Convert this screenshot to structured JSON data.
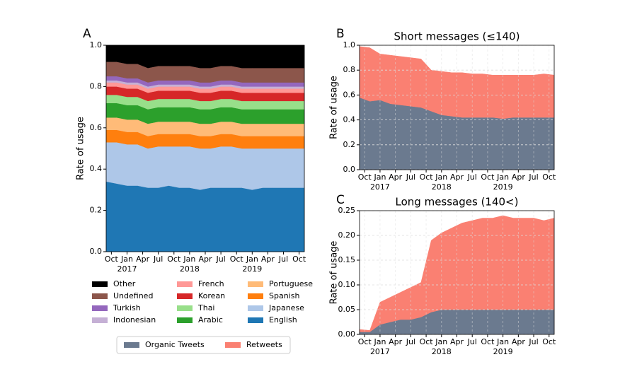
{
  "chart_data": [
    {
      "type": "stacked-area",
      "panel_label": "A",
      "ylabel": "Rate of usage",
      "grid": false,
      "x": [
        "2016-09",
        "2016-11",
        "2017-01",
        "2017-03",
        "2017-05",
        "2017-07",
        "2017-09",
        "2017-11",
        "2018-01",
        "2018-03",
        "2018-05",
        "2018-07",
        "2018-09",
        "2018-11",
        "2019-01",
        "2019-03",
        "2019-05",
        "2019-07",
        "2019-09",
        "2019-11"
      ],
      "xlim": [
        "2016-09",
        "2019-11"
      ],
      "xticks": [
        {
          "value": "2016-10",
          "label": "Oct"
        },
        {
          "value": "2017-01",
          "label": "Jan"
        },
        {
          "value": "2017-04",
          "label": "Apr"
        },
        {
          "value": "2017-07",
          "label": "Jul"
        },
        {
          "value": "2017-10",
          "label": "Oct"
        },
        {
          "value": "2018-01",
          "label": "Jan"
        },
        {
          "value": "2018-04",
          "label": "Apr"
        },
        {
          "value": "2018-07",
          "label": "Jul"
        },
        {
          "value": "2018-10",
          "label": "Oct"
        },
        {
          "value": "2019-01",
          "label": "Jan"
        },
        {
          "value": "2019-04",
          "label": "Apr"
        },
        {
          "value": "2019-07",
          "label": "Jul"
        },
        {
          "value": "2019-10",
          "label": "Oct"
        }
      ],
      "xtick_years": [
        {
          "value": "2017-01",
          "label": "2017"
        },
        {
          "value": "2018-01",
          "label": "2018"
        },
        {
          "value": "2019-01",
          "label": "2019"
        }
      ],
      "ylim": [
        0,
        1
      ],
      "yticks": [
        {
          "value": 0,
          "label": "0.0"
        },
        {
          "value": 0.2,
          "label": "0.2"
        },
        {
          "value": 0.4,
          "label": "0.4"
        },
        {
          "value": 0.6,
          "label": "0.6"
        },
        {
          "value": 0.8,
          "label": "0.8"
        },
        {
          "value": 1,
          "label": "1.0"
        }
      ],
      "series": [
        {
          "name": "English",
          "color": "#1f77b4",
          "values": [
            0.34,
            0.33,
            0.32,
            0.32,
            0.31,
            0.31,
            0.32,
            0.31,
            0.31,
            0.3,
            0.31,
            0.31,
            0.31,
            0.31,
            0.3,
            0.31,
            0.31,
            0.31,
            0.31,
            0.31
          ]
        },
        {
          "name": "Japanese",
          "color": "#aec7e8",
          "values": [
            0.19,
            0.2,
            0.2,
            0.2,
            0.19,
            0.2,
            0.19,
            0.2,
            0.2,
            0.2,
            0.19,
            0.2,
            0.2,
            0.19,
            0.2,
            0.19,
            0.19,
            0.19,
            0.19,
            0.19
          ]
        },
        {
          "name": "Spanish",
          "color": "#ff7f0e",
          "values": [
            0.06,
            0.06,
            0.06,
            0.06,
            0.06,
            0.06,
            0.06,
            0.06,
            0.06,
            0.06,
            0.06,
            0.06,
            0.06,
            0.06,
            0.06,
            0.06,
            0.06,
            0.06,
            0.06,
            0.06
          ]
        },
        {
          "name": "Portuguese",
          "color": "#ffbb78",
          "values": [
            0.06,
            0.06,
            0.06,
            0.06,
            0.06,
            0.06,
            0.06,
            0.06,
            0.06,
            0.06,
            0.06,
            0.06,
            0.06,
            0.06,
            0.06,
            0.06,
            0.06,
            0.06,
            0.06,
            0.06
          ]
        },
        {
          "name": "Arabic",
          "color": "#2ca02c",
          "values": [
            0.07,
            0.07,
            0.07,
            0.07,
            0.07,
            0.07,
            0.07,
            0.07,
            0.07,
            0.07,
            0.07,
            0.07,
            0.07,
            0.07,
            0.07,
            0.07,
            0.07,
            0.07,
            0.07,
            0.07
          ]
        },
        {
          "name": "Thai",
          "color": "#98df8a",
          "values": [
            0.04,
            0.04,
            0.04,
            0.04,
            0.04,
            0.04,
            0.04,
            0.04,
            0.04,
            0.04,
            0.04,
            0.04,
            0.04,
            0.04,
            0.04,
            0.04,
            0.04,
            0.04,
            0.04,
            0.04
          ]
        },
        {
          "name": "Korean",
          "color": "#d62728",
          "values": [
            0.04,
            0.04,
            0.04,
            0.04,
            0.04,
            0.04,
            0.04,
            0.04,
            0.04,
            0.04,
            0.04,
            0.04,
            0.04,
            0.04,
            0.04,
            0.04,
            0.04,
            0.04,
            0.04,
            0.04
          ]
        },
        {
          "name": "French",
          "color": "#ff9896",
          "values": [
            0.02,
            0.02,
            0.02,
            0.02,
            0.02,
            0.02,
            0.02,
            0.02,
            0.02,
            0.02,
            0.02,
            0.02,
            0.02,
            0.02,
            0.02,
            0.02,
            0.02,
            0.02,
            0.02,
            0.02
          ]
        },
        {
          "name": "Indonesian",
          "color": "#c5b0d5",
          "values": [
            0.01,
            0.01,
            0.01,
            0.01,
            0.01,
            0.01,
            0.01,
            0.01,
            0.01,
            0.01,
            0.01,
            0.01,
            0.01,
            0.01,
            0.01,
            0.01,
            0.01,
            0.01,
            0.01,
            0.01
          ]
        },
        {
          "name": "Turkish",
          "color": "#9467bd",
          "values": [
            0.02,
            0.02,
            0.02,
            0.02,
            0.02,
            0.02,
            0.02,
            0.02,
            0.02,
            0.02,
            0.02,
            0.02,
            0.02,
            0.02,
            0.02,
            0.02,
            0.02,
            0.02,
            0.02,
            0.02
          ]
        },
        {
          "name": "Undefined",
          "color": "#8c564b",
          "values": [
            0.07,
            0.07,
            0.07,
            0.07,
            0.07,
            0.07,
            0.07,
            0.07,
            0.07,
            0.07,
            0.07,
            0.07,
            0.07,
            0.07,
            0.07,
            0.07,
            0.07,
            0.07,
            0.07,
            0.07
          ]
        },
        {
          "name": "Other",
          "color": "#000000",
          "values": [
            0.08,
            0.08,
            0.09,
            0.09,
            0.11,
            0.1,
            0.1,
            0.1,
            0.1,
            0.11,
            0.11,
            0.1,
            0.1,
            0.11,
            0.11,
            0.11,
            0.11,
            0.11,
            0.11,
            0.11
          ]
        }
      ]
    },
    {
      "type": "stacked-area",
      "panel_label": "B",
      "title": "Short messages (≤140)",
      "ylabel": "Rate of usage",
      "grid": true,
      "x": [
        "2016-09",
        "2016-11",
        "2017-01",
        "2017-03",
        "2017-05",
        "2017-07",
        "2017-09",
        "2017-11",
        "2018-01",
        "2018-03",
        "2018-05",
        "2018-07",
        "2018-09",
        "2018-11",
        "2019-01",
        "2019-03",
        "2019-05",
        "2019-07",
        "2019-09",
        "2019-11"
      ],
      "xlim": [
        "2016-09",
        "2019-11"
      ],
      "xticks": [
        {
          "value": "2016-10",
          "label": "Oct"
        },
        {
          "value": "2017-01",
          "label": "Jan"
        },
        {
          "value": "2017-04",
          "label": "Apr"
        },
        {
          "value": "2017-07",
          "label": "Jul"
        },
        {
          "value": "2017-10",
          "label": "Oct"
        },
        {
          "value": "2018-01",
          "label": "Jan"
        },
        {
          "value": "2018-04",
          "label": "Apr"
        },
        {
          "value": "2018-07",
          "label": "Jul"
        },
        {
          "value": "2018-10",
          "label": "Oct"
        },
        {
          "value": "2019-01",
          "label": "Jan"
        },
        {
          "value": "2019-04",
          "label": "Apr"
        },
        {
          "value": "2019-07",
          "label": "Jul"
        },
        {
          "value": "2019-10",
          "label": "Oct"
        }
      ],
      "xtick_years": [
        {
          "value": "2017-01",
          "label": "2017"
        },
        {
          "value": "2018-01",
          "label": "2018"
        },
        {
          "value": "2019-01",
          "label": "2019"
        }
      ],
      "ylim": [
        0,
        1
      ],
      "yticks": [
        {
          "value": 0,
          "label": "0.0"
        },
        {
          "value": 0.2,
          "label": "0.2"
        },
        {
          "value": 0.4,
          "label": "0.4"
        },
        {
          "value": 0.6,
          "label": "0.6"
        },
        {
          "value": 0.8,
          "label": "0.8"
        },
        {
          "value": 1,
          "label": "1.0"
        }
      ],
      "series": [
        {
          "name": "Organic Tweets",
          "color": "#6b7a8f",
          "values": [
            0.58,
            0.55,
            0.56,
            0.53,
            0.52,
            0.51,
            0.5,
            0.47,
            0.44,
            0.43,
            0.42,
            0.42,
            0.42,
            0.42,
            0.41,
            0.42,
            0.42,
            0.42,
            0.42,
            0.42
          ]
        },
        {
          "name": "Retweets",
          "color": "#fa8072",
          "values": [
            0.41,
            0.43,
            0.37,
            0.39,
            0.39,
            0.39,
            0.39,
            0.33,
            0.35,
            0.35,
            0.36,
            0.35,
            0.35,
            0.34,
            0.35,
            0.34,
            0.34,
            0.34,
            0.35,
            0.34
          ]
        }
      ]
    },
    {
      "type": "stacked-area",
      "panel_label": "C",
      "title": "Long messages (140<)",
      "ylabel": "Rate of usage",
      "grid": true,
      "x": [
        "2016-09",
        "2016-11",
        "2017-01",
        "2017-03",
        "2017-05",
        "2017-07",
        "2017-09",
        "2017-11",
        "2018-01",
        "2018-03",
        "2018-05",
        "2018-07",
        "2018-09",
        "2018-11",
        "2019-01",
        "2019-03",
        "2019-05",
        "2019-07",
        "2019-09",
        "2019-11"
      ],
      "xlim": [
        "2016-09",
        "2019-11"
      ],
      "xticks": [
        {
          "value": "2016-10",
          "label": "Oct"
        },
        {
          "value": "2017-01",
          "label": "Jan"
        },
        {
          "value": "2017-04",
          "label": "Apr"
        },
        {
          "value": "2017-07",
          "label": "Jul"
        },
        {
          "value": "2017-10",
          "label": "Oct"
        },
        {
          "value": "2018-01",
          "label": "Jan"
        },
        {
          "value": "2018-04",
          "label": "Apr"
        },
        {
          "value": "2018-07",
          "label": "Jul"
        },
        {
          "value": "2018-10",
          "label": "Oct"
        },
        {
          "value": "2019-01",
          "label": "Jan"
        },
        {
          "value": "2019-04",
          "label": "Apr"
        },
        {
          "value": "2019-07",
          "label": "Jul"
        },
        {
          "value": "2019-10",
          "label": "Oct"
        }
      ],
      "xtick_years": [
        {
          "value": "2017-01",
          "label": "2017"
        },
        {
          "value": "2018-01",
          "label": "2018"
        },
        {
          "value": "2019-01",
          "label": "2019"
        }
      ],
      "ylim": [
        0,
        0.25
      ],
      "yticks": [
        {
          "value": 0,
          "label": "0.00"
        },
        {
          "value": 0.05,
          "label": "0.05"
        },
        {
          "value": 0.1,
          "label": "0.10"
        },
        {
          "value": 0.15,
          "label": "0.15"
        },
        {
          "value": 0.2,
          "label": "0.20"
        },
        {
          "value": 0.25,
          "label": "0.25"
        }
      ],
      "series": [
        {
          "color": "#6b7a8f",
          "values": [
            0.005,
            0.005,
            0.02,
            0.025,
            0.03,
            0.03,
            0.035,
            0.045,
            0.05,
            0.05,
            0.05,
            0.05,
            0.05,
            0.05,
            0.05,
            0.05,
            0.05,
            0.05,
            0.05,
            0.05
          ]
        },
        {
          "color": "#fa8072",
          "values": [
            0.005,
            0.003,
            0.045,
            0.05,
            0.055,
            0.065,
            0.07,
            0.145,
            0.155,
            0.165,
            0.175,
            0.18,
            0.185,
            0.185,
            0.19,
            0.185,
            0.185,
            0.185,
            0.18,
            0.185
          ]
        }
      ]
    }
  ]
}
